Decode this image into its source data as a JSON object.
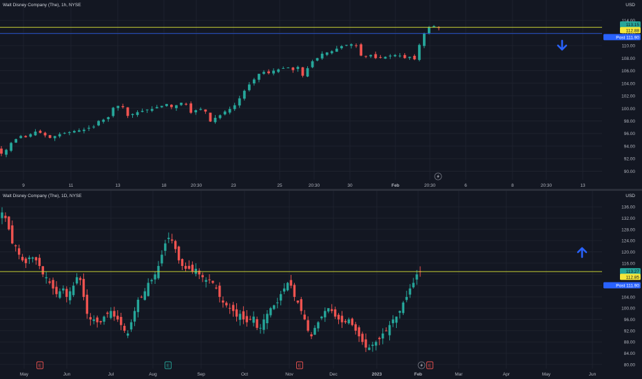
{
  "colors": {
    "background": "#131722",
    "grid": "#1e222d",
    "up": "#26a69a",
    "down": "#ef5350",
    "level_line": "#c9d234",
    "blue_line": "#2962ff",
    "arrow": "#2962ff",
    "axis_text": "#b2b5be"
  },
  "top_chart": {
    "title": "Walt Disney Company (The), 1h, NYSE",
    "currency": "USD",
    "y_ticks": [
      "114.00",
      "112.00",
      "110.00",
      "108.00",
      "106.00",
      "104.00",
      "102.00",
      "100.00",
      "98.00",
      "96.00",
      "94.00",
      "92.00",
      "90.00"
    ],
    "x_ticks": [
      "9",
      "11",
      "13",
      "18",
      "20:30",
      "23",
      "25",
      "20:30",
      "30",
      "Feb",
      "20:30",
      "6",
      "8",
      "20:30",
      "13"
    ],
    "badges": [
      {
        "label": "113.15",
        "color": "#26a69a",
        "text_color": "#131722"
      },
      {
        "label": "112.88",
        "color": "#f5e73a",
        "text_color": "#131722"
      },
      {
        "label": "Post 111.90",
        "color": "#2962ff",
        "text_color": "#ffffff"
      }
    ],
    "arrow": "down-arrow-icon",
    "event_icon": "lightning-icon"
  },
  "bottom_chart": {
    "title": "Walt Disney Company (The), 1D, NYSE",
    "currency": "USD",
    "y_ticks": [
      "136.00",
      "132.00",
      "128.00",
      "124.00",
      "120.00",
      "116.00",
      "112.00",
      "108.00",
      "104.00",
      "100.00",
      "96.00",
      "92.00",
      "88.00",
      "84.00",
      "80.00"
    ],
    "x_ticks": [
      "May",
      "Jun",
      "Jul",
      "Aug",
      "Sep",
      "Oct",
      "Nov",
      "Dec",
      "2023",
      "Feb",
      "Mar",
      "Apr",
      "May",
      "Jun"
    ],
    "badges": [
      {
        "label": "113.27",
        "color": "#26a69a",
        "text_color": "#131722"
      },
      {
        "label": "112.85",
        "color": "#f5e73a",
        "text_color": "#131722"
      },
      {
        "label": "Post 111.90",
        "color": "#2962ff",
        "text_color": "#ffffff"
      }
    ],
    "arrow": "up-arrow-icon",
    "earnings_markers": [
      "E",
      "E",
      "E",
      "E"
    ],
    "event_icon": "lightning-icon"
  },
  "chart_data": [
    {
      "type": "candlestick",
      "title": "Walt Disney Company (The), 1h, NYSE",
      "ylim": [
        89.5,
        115
      ],
      "close": [
        92.8,
        93.4,
        94.5,
        95.1,
        95.6,
        95.4,
        95.9,
        96.3,
        96.1,
        95.7,
        95.3,
        95.6,
        95.9,
        96.1,
        96.2,
        96.4,
        96.5,
        96.6,
        96.9,
        97.1,
        98.0,
        98.2,
        98.6,
        100.1,
        100.4,
        100.2,
        98.8,
        99.1,
        99.4,
        99.6,
        99.8,
        99.9,
        100.2,
        100.4,
        100.7,
        100.2,
        100.5,
        100.9,
        100.6,
        99.3,
        99.7,
        99.9,
        99.5,
        97.9,
        98.5,
        98.9,
        99.5,
        99.9,
        100.5,
        101.6,
        102.8,
        103.8,
        104.6,
        105.5,
        105.8,
        105.6,
        106.0,
        106.2,
        106.4,
        106.5,
        106.1,
        106.6,
        105.2,
        106.4,
        107.5,
        108.0,
        108.7,
        108.9,
        109.1,
        109.5,
        109.9,
        110.1,
        110.2,
        110.0,
        108.4,
        108.3,
        108.5,
        108.0,
        108.1,
        108.2,
        108.4,
        108.5,
        108.4,
        108.0,
        108.2,
        107.8,
        110.1,
        111.9,
        112.9,
        113.1,
        112.8
      ]
    },
    {
      "type": "candlestick",
      "title": "Walt Disney Company (The), 1D, NYSE",
      "ylim": [
        79,
        138
      ],
      "close": [
        134,
        132,
        128,
        123,
        122,
        119,
        117,
        116,
        118,
        118,
        117,
        115,
        112,
        111,
        109,
        107,
        105,
        106,
        107,
        104,
        106,
        108,
        111,
        110,
        104,
        98,
        96,
        96,
        95,
        95,
        97,
        98,
        99,
        97,
        96,
        94,
        92,
        91,
        95,
        99,
        103,
        104,
        106,
        109,
        110,
        112,
        115,
        119,
        123,
        125,
        124,
        121,
        117,
        115,
        114,
        114,
        113,
        114,
        112,
        111,
        110,
        110,
        109,
        107,
        104,
        102,
        101,
        100,
        99,
        97,
        98,
        96,
        95,
        96,
        97,
        93,
        93,
        96,
        98,
        100,
        101,
        102,
        105,
        107,
        109,
        108,
        104,
        102,
        99,
        96,
        92,
        90,
        93,
        95,
        97,
        99,
        100,
        99,
        97,
        96,
        95,
        95,
        96,
        94,
        92,
        90,
        88,
        86,
        86,
        87,
        88,
        89,
        91,
        92,
        94,
        96,
        97,
        99,
        102,
        104,
        107,
        109,
        112,
        113
      ]
    }
  ]
}
